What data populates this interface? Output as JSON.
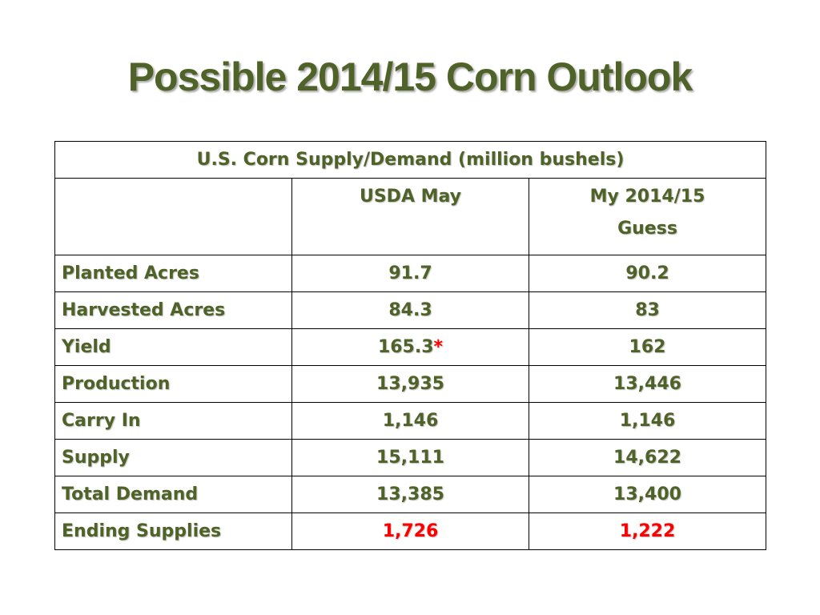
{
  "slide": {
    "title": "Possible 2014/15 Corn Outlook"
  },
  "table": {
    "caption": "U.S. Corn Supply/Demand (million bushels)",
    "header": {
      "blank": "",
      "col1": "USDA May",
      "col2_line1": "My 2014/15",
      "col2_line2": "Guess"
    },
    "rows": [
      {
        "label": "Planted Acres",
        "usda": "91.7",
        "guess": "90.2"
      },
      {
        "label": "Harvested Acres",
        "usda": "84.3",
        "guess": "83"
      },
      {
        "label": "Yield",
        "usda": "165.3",
        "usda_mark": "*",
        "guess": "162"
      },
      {
        "label": "Production",
        "usda": "13,935",
        "guess": "13,446"
      },
      {
        "label": "Carry In",
        "usda": "1,146",
        "guess": "1,146"
      },
      {
        "label": "Supply",
        "usda": "15,111",
        "guess": "14,622"
      },
      {
        "label": "Total Demand",
        "usda": "13,385",
        "guess": "13,400"
      },
      {
        "label": "Ending Supplies",
        "usda": "1,726",
        "guess": "1,222"
      }
    ]
  },
  "colors": {
    "text_green": "#4f6228",
    "highlight_red": "#ff0000",
    "border": "#000000"
  }
}
